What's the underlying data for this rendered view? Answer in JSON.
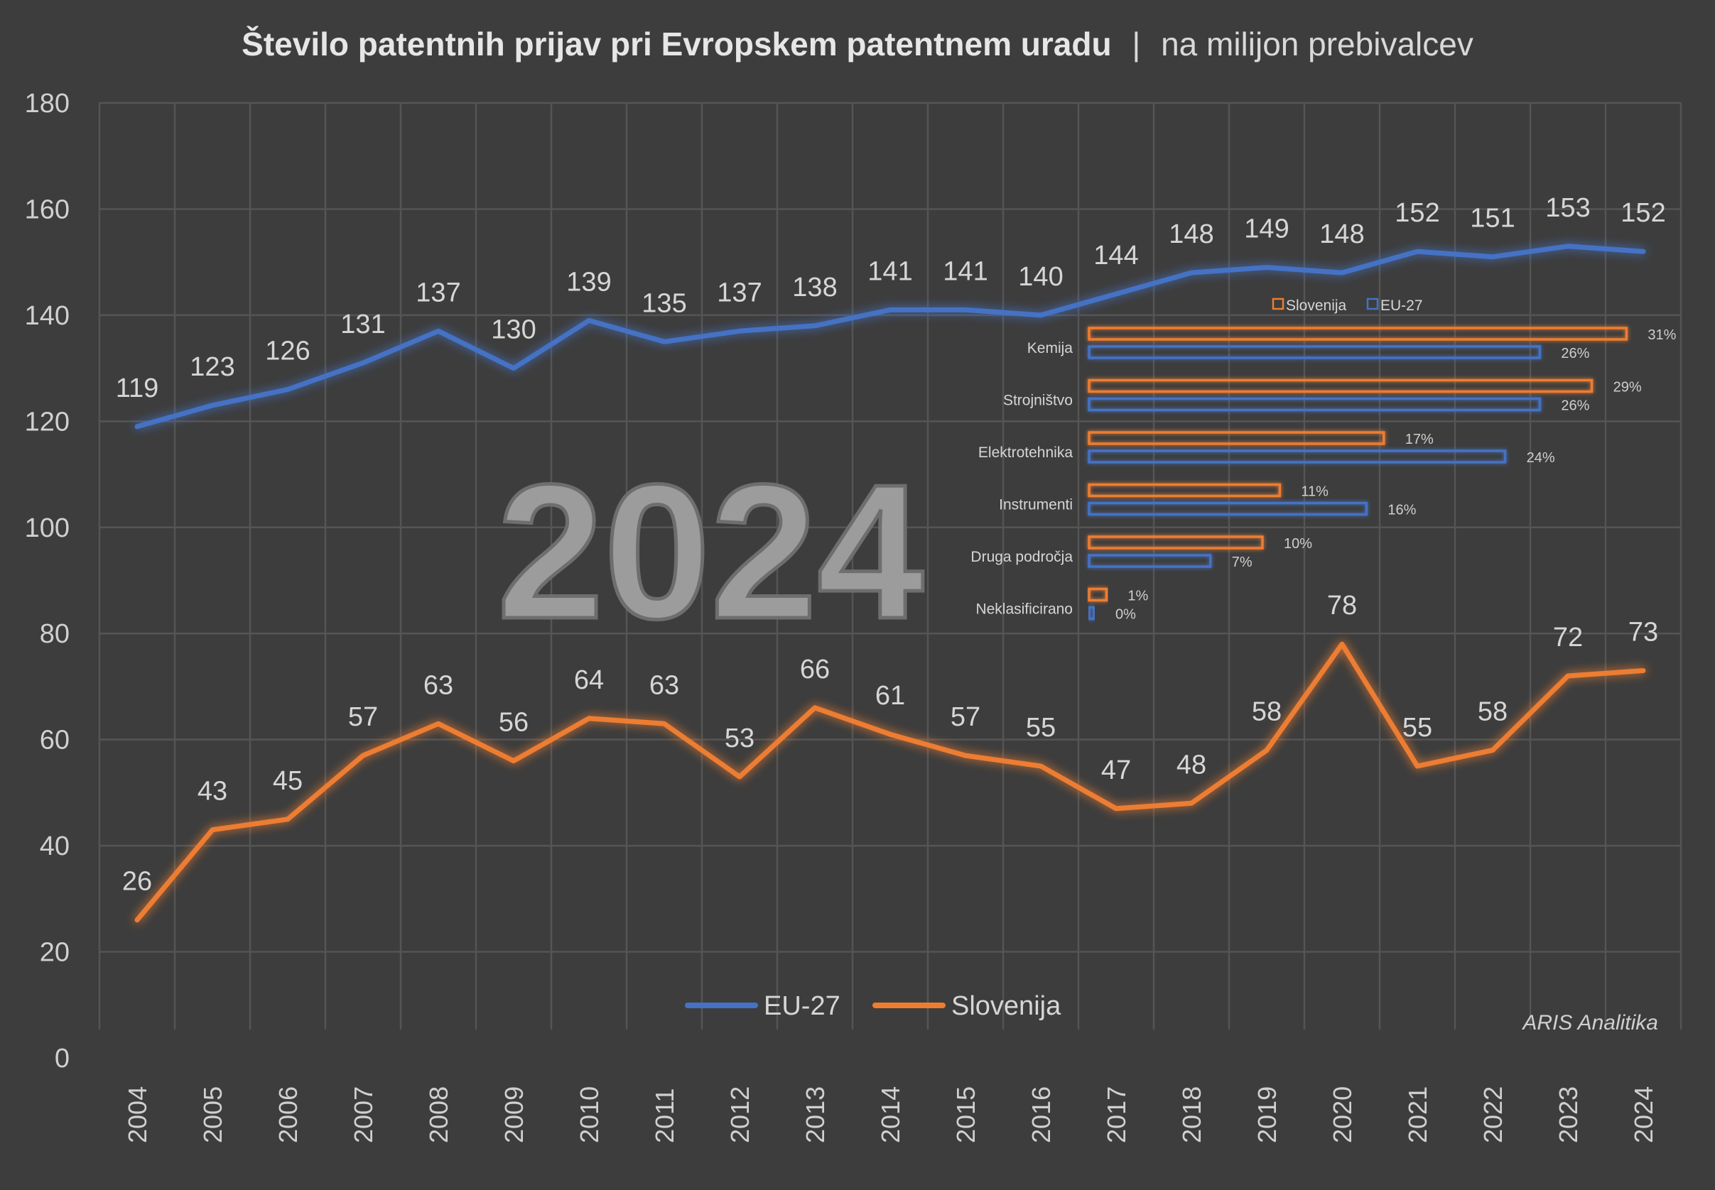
{
  "title": {
    "bold": "Število patentnih prijav pri Evropskem patentnem uradu",
    "separator": "|",
    "rest": "na milijon prebivalcev"
  },
  "watermark": "2024",
  "credit": "ARIS Analitika",
  "colors": {
    "background": "#3d3d3d",
    "eu": "#4472c4",
    "si": "#ed7d31",
    "grid": "#555555",
    "text": "#d6d6d6"
  },
  "chart_data": [
    {
      "type": "line",
      "title": "Število patentnih prijav pri Evropskem patentnem uradu | na milijon prebivalcev",
      "x": [
        "2004",
        "2005",
        "2006",
        "2007",
        "2008",
        "2009",
        "2010",
        "2011",
        "2012",
        "2013",
        "2014",
        "2015",
        "2016",
        "2017",
        "2018",
        "2019",
        "2020",
        "2021",
        "2022",
        "2023",
        "2024"
      ],
      "series": [
        {
          "name": "EU-27",
          "color": "#4472c4",
          "values": [
            119,
            123,
            126,
            131,
            137,
            130,
            139,
            135,
            137,
            138,
            141,
            141,
            140,
            144,
            148,
            149,
            148,
            152,
            151,
            153,
            152
          ]
        },
        {
          "name": "Slovenija",
          "color": "#ed7d31",
          "values": [
            26,
            43,
            45,
            57,
            63,
            56,
            64,
            63,
            53,
            66,
            61,
            57,
            55,
            47,
            48,
            58,
            78,
            55,
            58,
            72,
            73
          ]
        }
      ],
      "ylim": [
        0,
        180
      ],
      "yticks": [
        0,
        20,
        40,
        60,
        80,
        100,
        120,
        140,
        160,
        180
      ],
      "xlabel": "",
      "ylabel": "",
      "grid": true,
      "legend": "bottom-center",
      "data_labels": true
    },
    {
      "type": "bar",
      "orientation": "horizontal",
      "categories": [
        "Kemija",
        "Strojništvo",
        "Elektrotehnika",
        "Instrumenti",
        "Druga področja",
        "Neklasificirano"
      ],
      "series": [
        {
          "name": "Slovenija",
          "color": "#ed7d31",
          "values": [
            31,
            29,
            17,
            11,
            10,
            1
          ]
        },
        {
          "name": "EU-27",
          "color": "#4472c4",
          "values": [
            26,
            26,
            24,
            16,
            7,
            0
          ]
        }
      ],
      "value_suffix": "%",
      "legend": "top-right"
    }
  ]
}
